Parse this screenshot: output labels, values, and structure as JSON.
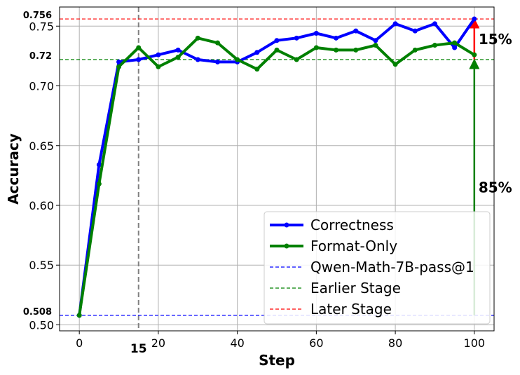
{
  "chart_data": {
    "type": "line",
    "xlabel": "Step",
    "ylabel": "Accuracy",
    "xlim": [
      -5,
      105
    ],
    "ylim": [
      0.495,
      0.766
    ],
    "x_ticks": [
      0,
      20,
      40,
      60,
      80,
      100
    ],
    "y_ticks": [
      0.5,
      0.55,
      0.6,
      0.65,
      0.7,
      0.75
    ],
    "x_tick_labels": [
      "0",
      "20",
      "40",
      "60",
      "80",
      "100"
    ],
    "y_tick_labels": [
      "0.50",
      "0.55",
      "0.60",
      "0.65",
      "0.70",
      "0.75"
    ],
    "grid": true,
    "legend_placement": "lower-right",
    "series": [
      {
        "name": "Correctness",
        "color": "#0000ff",
        "x": [
          0,
          5,
          10,
          15,
          20,
          25,
          30,
          35,
          40,
          45,
          50,
          55,
          60,
          65,
          70,
          75,
          80,
          85,
          90,
          95,
          100
        ],
        "values": [
          0.508,
          0.634,
          0.72,
          0.722,
          0.726,
          0.73,
          0.722,
          0.72,
          0.72,
          0.728,
          0.738,
          0.74,
          0.744,
          0.74,
          0.746,
          0.738,
          0.752,
          0.746,
          0.752,
          0.732,
          0.756
        ]
      },
      {
        "name": "Format-Only",
        "color": "#008000",
        "x": [
          0,
          5,
          10,
          15,
          20,
          25,
          30,
          35,
          40,
          45,
          50,
          55,
          60,
          65,
          70,
          75,
          80,
          85,
          90,
          95,
          100
        ],
        "values": [
          0.508,
          0.618,
          0.716,
          0.732,
          0.716,
          0.724,
          0.74,
          0.736,
          0.722,
          0.714,
          0.73,
          0.722,
          0.732,
          0.73,
          0.73,
          0.734,
          0.718,
          0.73,
          0.734,
          0.736,
          0.726
        ]
      }
    ],
    "reference_lines": [
      {
        "name": "Qwen-Math-7B-pass@1",
        "value": 0.508,
        "label": "0.508",
        "color": "#0000ff"
      },
      {
        "name": "Earlier Stage",
        "value": 0.722,
        "label": "0.72",
        "color": "#008000"
      },
      {
        "name": "Later Stage",
        "value": 0.756,
        "label": "0.756",
        "color": "#ff0000"
      }
    ],
    "vertical_marker": {
      "x": 15,
      "label": "15",
      "color": "#808080"
    },
    "annotations": [
      {
        "text": "15%",
        "color": "#ff0000",
        "x": 100,
        "from": 0.722,
        "to": 0.756
      },
      {
        "text": "85%",
        "color": "#008000",
        "x": 100,
        "from": 0.508,
        "to": 0.722
      }
    ]
  }
}
